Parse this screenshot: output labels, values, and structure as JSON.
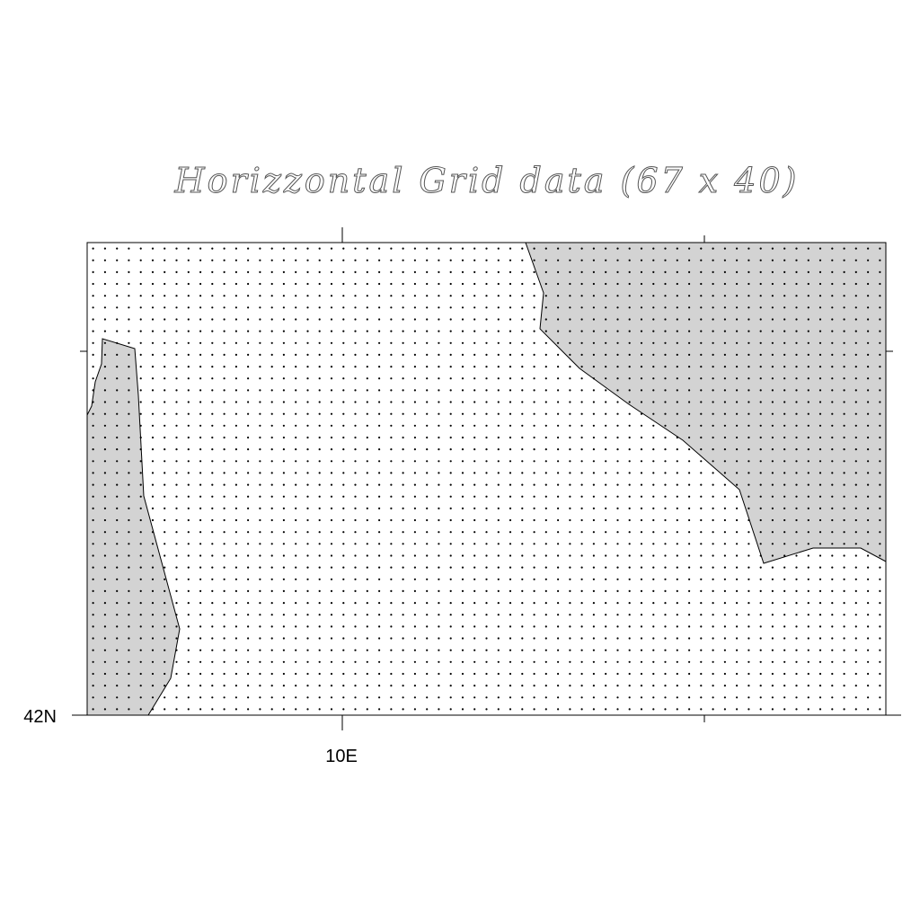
{
  "title": "Horizzontal Grid data (67 x 40)",
  "grid": {
    "nx": 67,
    "ny": 40
  },
  "axes": {
    "x_tick_label": "10E",
    "y_tick_label": "42N"
  },
  "colors": {
    "land": "#d3d3d3",
    "sea": "#ffffff",
    "coastline": "#000000",
    "grid_points": "#000000",
    "title_outline": "#555555"
  }
}
